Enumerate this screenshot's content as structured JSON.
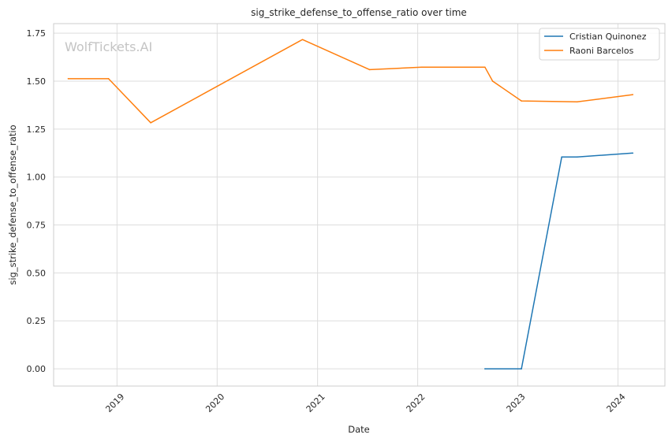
{
  "chart_data": {
    "type": "line",
    "title": "sig_strike_defense_to_offense_ratio over time",
    "xlabel": "Date",
    "ylabel": "sig_strike_defense_to_offense_ratio",
    "watermark": "WolfTickets.AI",
    "x_ticks": [
      "2019",
      "2020",
      "2021",
      "2022",
      "2023",
      "2024"
    ],
    "y_ticks": [
      "0.00",
      "0.25",
      "0.50",
      "0.75",
      "1.00",
      "1.25",
      "1.50",
      "1.75"
    ],
    "xlim": [
      "2018-05-15",
      "2024-06-20"
    ],
    "ylim": [
      -0.09,
      1.8
    ],
    "grid": true,
    "legend_position": "top-right",
    "series": [
      {
        "name": "Cristian Quinonez",
        "color": "#1f77b4",
        "points": [
          {
            "x": "2022-09-03",
            "y": 0.0
          },
          {
            "x": "2023-01-14",
            "y": 0.0
          },
          {
            "x": "2023-06-10",
            "y": 1.105
          },
          {
            "x": "2023-08-05",
            "y": 1.105
          },
          {
            "x": "2024-02-24",
            "y": 1.125
          }
        ]
      },
      {
        "name": "Raoni Barcelos",
        "color": "#ff7f0e",
        "points": [
          {
            "x": "2018-07-07",
            "y": 1.513
          },
          {
            "x": "2018-12-01",
            "y": 1.513
          },
          {
            "x": "2019-05-04",
            "y": 1.283
          },
          {
            "x": "2020-11-07",
            "y": 1.717
          },
          {
            "x": "2021-07-10",
            "y": 1.56
          },
          {
            "x": "2022-01-15",
            "y": 1.573
          },
          {
            "x": "2022-09-03",
            "y": 1.573
          },
          {
            "x": "2022-10-01",
            "y": 1.5
          },
          {
            "x": "2023-01-14",
            "y": 1.397
          },
          {
            "x": "2023-08-05",
            "y": 1.392
          },
          {
            "x": "2024-02-24",
            "y": 1.43
          }
        ]
      }
    ]
  }
}
